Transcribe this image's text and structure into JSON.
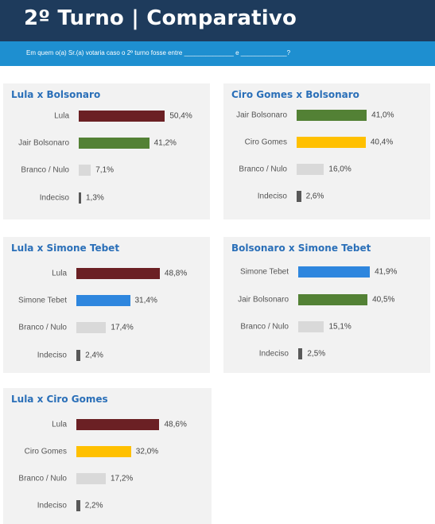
{
  "header": {
    "title": "2º Turno | Comparativo",
    "question": "Em quem o(a) Sr.(a) votaria caso o 2º turno fosse entre ______________ e _____________?"
  },
  "colors": {
    "header_bg": "#1e3b5c",
    "subbar_bg": "#1e8fd0",
    "panel_bg": "#f2f2f2",
    "title_blue": "#2a6fb8",
    "Lula": "#6b2024",
    "Jair Bolsonaro": "#538135",
    "Ciro Gomes": "#ffc000",
    "Simone Tebet": "#2e86de",
    "Branco / Nulo": "#d9d9d9",
    "Indeciso": "#595959"
  },
  "chart_data": [
    {
      "type": "bar",
      "orientation": "horizontal",
      "title": "Lula x Bolsonaro",
      "categories": [
        "Lula",
        "Jair Bolsonaro",
        "Branco / Nulo",
        "Indeciso"
      ],
      "values": [
        50.4,
        41.2,
        7.1,
        1.3
      ],
      "value_labels": [
        "50,4%",
        "41,2%",
        "7,1%",
        "1,3%"
      ],
      "unit": "%"
    },
    {
      "type": "bar",
      "orientation": "horizontal",
      "title": "Ciro Gomes x Bolsonaro",
      "categories": [
        "Jair Bolsonaro",
        "Ciro Gomes",
        "Branco / Nulo",
        "Indeciso"
      ],
      "values": [
        41.0,
        40.4,
        16.0,
        2.6
      ],
      "value_labels": [
        "41,0%",
        "40,4%",
        "16,0%",
        "2,6%"
      ],
      "unit": "%"
    },
    {
      "type": "bar",
      "orientation": "horizontal",
      "title": "Lula x Simone Tebet",
      "categories": [
        "Lula",
        "Simone Tebet",
        "Branco / Nulo",
        "Indeciso"
      ],
      "values": [
        48.8,
        31.4,
        17.4,
        2.4
      ],
      "value_labels": [
        "48,8%",
        "31,4%",
        "17,4%",
        "2,4%"
      ],
      "unit": "%"
    },
    {
      "type": "bar",
      "orientation": "horizontal",
      "title": "Bolsonaro x Simone Tebet",
      "categories": [
        "Simone Tebet",
        "Jair Bolsonaro",
        "Branco / Nulo",
        "Indeciso"
      ],
      "values": [
        41.9,
        40.5,
        15.1,
        2.5
      ],
      "value_labels": [
        "41,9%",
        "40,5%",
        "15,1%",
        "2,5%"
      ],
      "unit": "%"
    },
    {
      "type": "bar",
      "orientation": "horizontal",
      "title": "Lula x Ciro Gomes",
      "categories": [
        "Lula",
        "Ciro Gomes",
        "Branco / Nulo",
        "Indeciso"
      ],
      "values": [
        48.6,
        32.0,
        17.2,
        2.2
      ],
      "value_labels": [
        "48,6%",
        "32,0%",
        "17,2%",
        "2,2%"
      ],
      "unit": "%"
    }
  ]
}
